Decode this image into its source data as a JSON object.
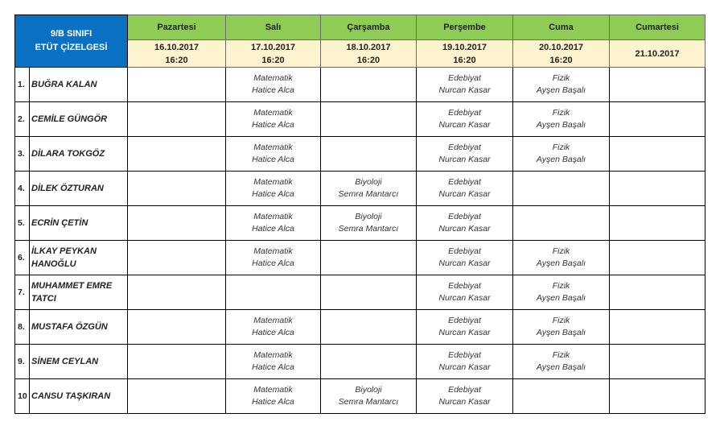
{
  "title": [
    "9/B SINIFI",
    "ETÜT ÇİZELGESİ"
  ],
  "colors": {
    "header_blue": "#0a70c2",
    "day_green": "#8fcc55",
    "date_yellow": "#fdf3cf"
  },
  "days": [
    {
      "name": "Pazartesi",
      "date": "16.10.2017",
      "time": "16:20"
    },
    {
      "name": "Salı",
      "date": "17.10.2017",
      "time": "16:20"
    },
    {
      "name": "Çarşamba",
      "date": "18.10.2017",
      "time": "16:20"
    },
    {
      "name": "Perşembe",
      "date": "19.10.2017",
      "time": "16:20"
    },
    {
      "name": "Cuma",
      "date": "20.10.2017",
      "time": "16:20"
    },
    {
      "name": "Cumartesi",
      "date": "21.10.2017",
      "time": ""
    }
  ],
  "students": [
    {
      "no": "1.",
      "name": "BUĞRA KALAN",
      "slots": [
        null,
        [
          "Matematik",
          "Hatice Alca"
        ],
        null,
        [
          "Edebiyat",
          "Nurcan Kasar"
        ],
        [
          "Fizik",
          "Ayşen Başalı"
        ],
        null
      ]
    },
    {
      "no": "2.",
      "name": "CEMİLE GÜNGÖR",
      "slots": [
        null,
        [
          "Matematik",
          "Hatice Alca"
        ],
        null,
        [
          "Edebiyat",
          "Nurcan Kasar"
        ],
        [
          "Fizik",
          "Ayşen Başalı"
        ],
        null
      ]
    },
    {
      "no": "3.",
      "name": "DİLARA TOKGÖZ",
      "slots": [
        null,
        [
          "Matematik",
          "Hatice Alca"
        ],
        null,
        [
          "Edebiyat",
          "Nurcan Kasar"
        ],
        [
          "Fizik",
          "Ayşen Başalı"
        ],
        null
      ]
    },
    {
      "no": "4.",
      "name": "DİLEK ÖZTURAN",
      "slots": [
        null,
        [
          "Matematik",
          "Hatice Alca"
        ],
        [
          "Biyoloji",
          "Semra Mantarcı"
        ],
        [
          "Edebiyat",
          "Nurcan Kasar"
        ],
        null,
        null
      ]
    },
    {
      "no": "5.",
      "name": "ECRİN ÇETİN",
      "slots": [
        null,
        [
          "Matematik",
          "Hatice Alca"
        ],
        [
          "Biyoloji",
          "Semra Mantarcı"
        ],
        [
          "Edebiyat",
          "Nurcan Kasar"
        ],
        null,
        null
      ]
    },
    {
      "no": "6.",
      "name": "İLKAY PEYKAN HANOĞLU",
      "slots": [
        null,
        [
          "Matematik",
          "Hatice Alca"
        ],
        null,
        [
          "Edebiyat",
          "Nurcan Kasar"
        ],
        [
          "Fizik",
          "Ayşen Başalı"
        ],
        null
      ]
    },
    {
      "no": "7.",
      "name": "MUHAMMET EMRE TATCI",
      "slots": [
        null,
        null,
        null,
        [
          "Edebiyat",
          "Nurcan Kasar"
        ],
        [
          "Fizik",
          "Ayşen Başalı"
        ],
        null
      ]
    },
    {
      "no": "8.",
      "name": "MUSTAFA ÖZGÜN",
      "slots": [
        null,
        [
          "Matematik",
          "Hatice Alca"
        ],
        null,
        [
          "Edebiyat",
          "Nurcan Kasar"
        ],
        [
          "Fizik",
          "Ayşen Başalı"
        ],
        null
      ]
    },
    {
      "no": "9.",
      "name": "SİNEM CEYLAN",
      "slots": [
        null,
        [
          "Matematik",
          "Hatice Alca"
        ],
        null,
        [
          "Edebiyat",
          "Nurcan Kasar"
        ],
        [
          "Fizik",
          "Ayşen Başalı"
        ],
        null
      ]
    },
    {
      "no": "10",
      "name": "CANSU TAŞKIRAN",
      "slots": [
        null,
        [
          "Matematik",
          "Hatice Alca"
        ],
        [
          "Biyoloji",
          "Semra Mantarcı"
        ],
        [
          "Edebiyat",
          "Nurcan Kasar"
        ],
        null,
        null
      ]
    }
  ]
}
